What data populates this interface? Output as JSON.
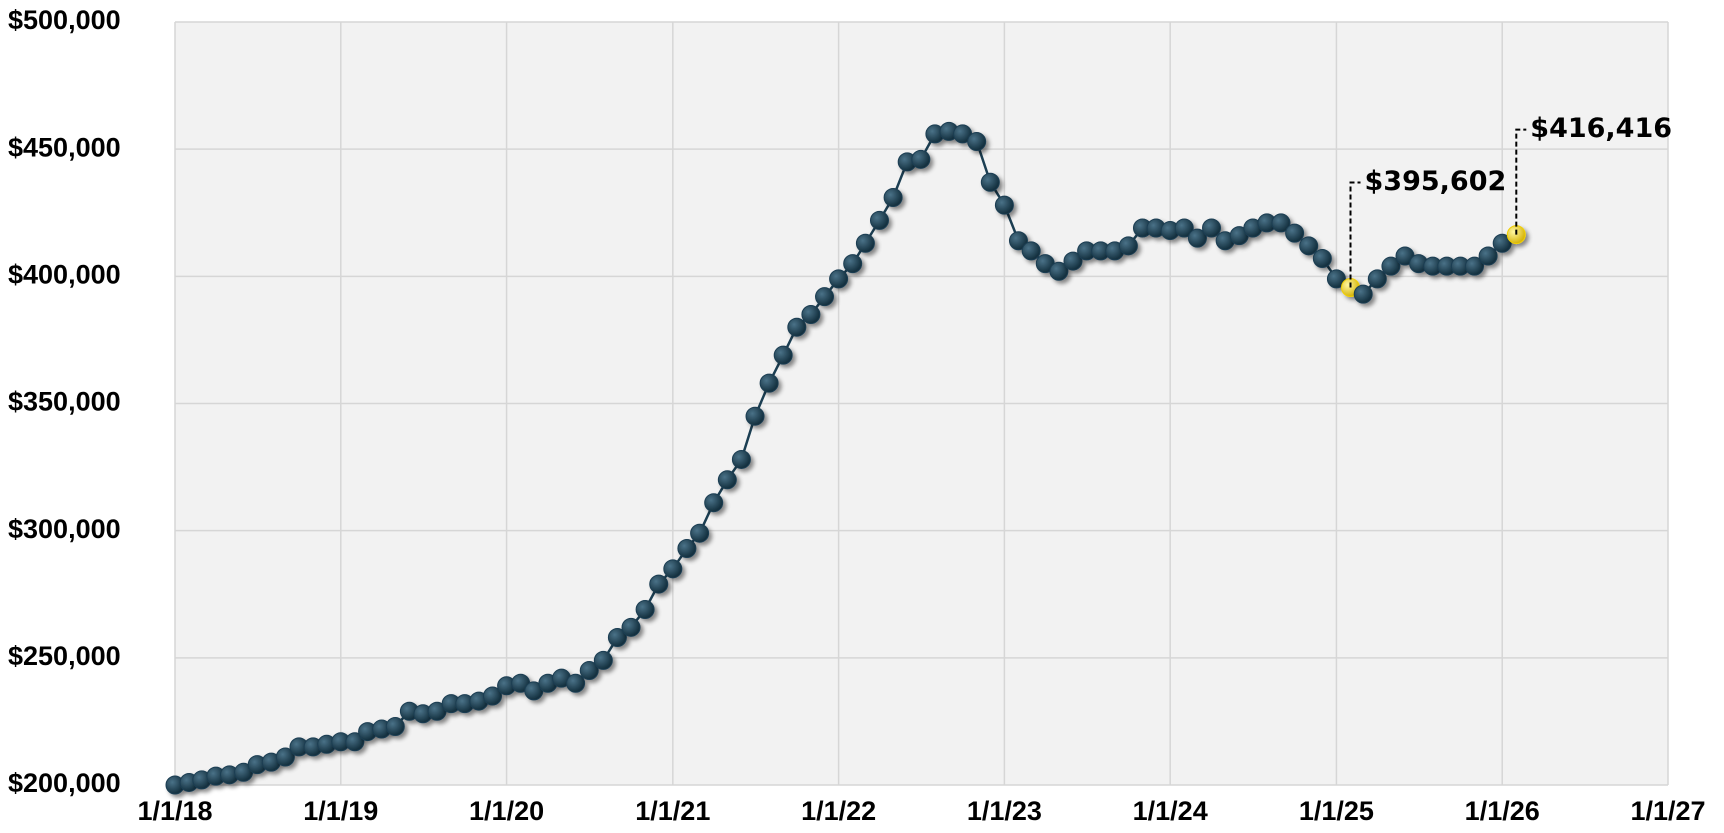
{
  "chart_data": {
    "type": "line",
    "x": [
      "1/1/18",
      "2/1/18",
      "3/1/18",
      "4/1/18",
      "5/1/18",
      "6/1/18",
      "7/1/18",
      "8/1/18",
      "9/1/18",
      "10/1/18",
      "11/1/18",
      "12/1/18",
      "1/1/19",
      "2/1/19",
      "3/1/19",
      "4/1/19",
      "5/1/19",
      "6/1/19",
      "7/1/19",
      "8/1/19",
      "9/1/19",
      "10/1/19",
      "11/1/19",
      "12/1/19",
      "1/1/20",
      "2/1/20",
      "3/1/20",
      "4/1/20",
      "5/1/20",
      "6/1/20",
      "7/1/20",
      "8/1/20",
      "9/1/20",
      "10/1/20",
      "11/1/20",
      "12/1/20",
      "1/1/21",
      "2/1/21",
      "3/1/21",
      "4/1/21",
      "5/1/21",
      "6/1/21",
      "7/1/21",
      "8/1/21",
      "9/1/21",
      "10/1/21",
      "11/1/21",
      "12/1/21",
      "1/1/22",
      "2/1/22",
      "3/1/22",
      "4/1/22",
      "5/1/22",
      "6/1/22",
      "7/1/22",
      "8/1/22",
      "9/1/22",
      "10/1/22",
      "11/1/22",
      "12/1/22",
      "1/1/23",
      "2/1/23",
      "3/1/23",
      "4/1/23",
      "5/1/23",
      "6/1/23",
      "7/1/23",
      "8/1/23",
      "9/1/23",
      "10/1/23",
      "11/1/23",
      "12/1/23",
      "1/1/24",
      "2/1/24",
      "3/1/24",
      "4/1/24",
      "5/1/24",
      "6/1/24",
      "7/1/24",
      "8/1/24",
      "9/1/24",
      "10/1/24",
      "11/1/24",
      "12/1/24",
      "1/1/25",
      "2/1/25",
      "3/1/25",
      "4/1/25",
      "5/1/25",
      "6/1/25",
      "7/1/25",
      "8/1/25",
      "9/1/25",
      "10/1/25",
      "11/1/25",
      "12/1/25",
      "1/1/26",
      "2/1/26"
    ],
    "values": [
      200000,
      201000,
      202000,
      203500,
      204000,
      205000,
      208000,
      209000,
      211000,
      215000,
      215000,
      216000,
      217000,
      217000,
      221000,
      222000,
      223000,
      229000,
      228000,
      229000,
      232000,
      232000,
      233000,
      235000,
      239000,
      240000,
      237000,
      240000,
      242000,
      240000,
      245000,
      249000,
      258000,
      262000,
      269000,
      279000,
      285000,
      293000,
      299000,
      311000,
      320000,
      328000,
      345000,
      358000,
      369000,
      380000,
      385000,
      392000,
      399000,
      405000,
      413000,
      422000,
      431000,
      445000,
      446000,
      456000,
      457000,
      456000,
      453000,
      437000,
      428000,
      414000,
      410000,
      405000,
      402000,
      406000,
      410000,
      410000,
      410000,
      412000,
      419000,
      419000,
      418000,
      419000,
      415000,
      419000,
      414000,
      416000,
      419000,
      421000,
      421000,
      417000,
      412000,
      407000,
      399000,
      395602,
      393000,
      399000,
      404000,
      408000,
      405000,
      404000,
      404000,
      404000,
      404000,
      408000,
      413000,
      416416
    ],
    "value_labels": [
      null,
      null,
      null,
      null,
      null,
      null,
      null,
      null,
      null,
      null,
      null,
      null,
      null,
      null,
      null,
      null,
      null,
      null,
      null,
      null,
      null,
      null,
      null,
      null,
      null,
      null,
      null,
      null,
      null,
      null,
      null,
      null,
      null,
      null,
      null,
      null,
      null,
      null,
      null,
      null,
      null,
      null,
      null,
      null,
      null,
      null,
      null,
      null,
      null,
      null,
      null,
      null,
      null,
      null,
      null,
      null,
      null,
      null,
      null,
      null,
      null,
      null,
      null,
      null,
      null,
      null,
      null,
      null,
      null,
      null,
      null,
      null,
      null,
      null,
      null,
      null,
      null,
      null,
      null,
      null,
      null,
      null,
      null,
      null,
      null,
      "$395,602",
      null,
      null,
      null,
      null,
      null,
      null,
      null,
      null,
      null,
      null,
      null,
      "$416,416"
    ],
    "color": "#1b3e52",
    "highlight_color": "#f2d000",
    "xlim": [
      "1/1/18",
      "1/1/27"
    ],
    "xticks": [
      "1/1/18",
      "1/1/19",
      "1/1/20",
      "1/1/21",
      "1/1/22",
      "1/1/23",
      "1/1/24",
      "1/1/25",
      "1/1/26",
      "1/1/27"
    ],
    "ylim": [
      200000,
      500000
    ],
    "yticks": [
      {
        "value": 200000,
        "label": "$200,000"
      },
      {
        "value": 250000,
        "label": "$250,000"
      },
      {
        "value": 300000,
        "label": "$300,000"
      },
      {
        "value": 350000,
        "label": "$350,000"
      },
      {
        "value": 400000,
        "label": "$400,000"
      },
      {
        "value": 450000,
        "label": "$450,000"
      },
      {
        "value": 500000,
        "label": "$500,000"
      }
    ],
    "grid": true
  }
}
